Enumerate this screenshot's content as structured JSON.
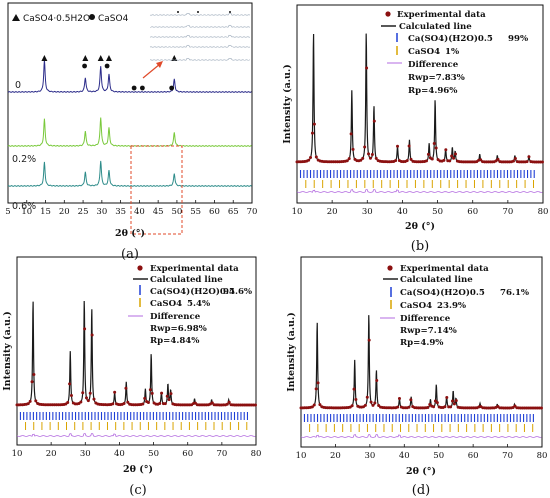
{
  "colors": {
    "frame": "#111111",
    "exp_marker": "#8b1010",
    "calc_line": "#1a1a1a",
    "tick_phase1": "#1f3fd6",
    "tick_phase2": "#d9a400",
    "difference": "#b36be0",
    "trace0": "#2c2c8a",
    "trace02": "#79c93b",
    "trace06": "#2e8c8a",
    "box": "#e04a2a"
  },
  "panel_a": {
    "legend_hemihydrate": "CaSO4·0.5H2O",
    "legend_caso4": "CaSO4",
    "xlabel": "2θ (°)",
    "panel_label": "(a)",
    "x_ticks": [
      "5",
      "10",
      "15",
      "20",
      "25",
      "30",
      "35",
      "40",
      "45",
      "50",
      "55",
      "60",
      "65",
      "70"
    ],
    "samples": [
      "0",
      "0.2%",
      "0.6%"
    ]
  },
  "panel_b": {
    "legend_exp": "Experimental data",
    "legend_calc": "Calculated line",
    "phase1_name": "Ca(SO4)(H2O)0.5",
    "phase1_pct": "99%",
    "phase2_name": "CaSO4",
    "phase2_pct": "1%",
    "legend_diff": "Difference",
    "rwp": "Rwp=7.83%",
    "rp": "Rp=4.96%",
    "xlabel": "2θ (°)",
    "ylabel": "Intensity (a.u.)",
    "panel_label": "(b)",
    "x_ticks": [
      "10",
      "20",
      "30",
      "40",
      "50",
      "60",
      "70",
      "80"
    ]
  },
  "panel_c": {
    "legend_exp": "Experimental data",
    "legend_calc": "Calculated line",
    "phase1_name": "Ca(SO4)(H2O)0.5",
    "phase1_pct": "94.6%",
    "phase2_name": "CaSO4",
    "phase2_pct": "5.4%",
    "legend_diff": "Difference",
    "rwp": "Rwp=6.98%",
    "rp": "Rp=4.84%",
    "xlabel": "2θ (°)",
    "ylabel": "Intensity (a.u.)",
    "panel_label": "(c)",
    "x_ticks": [
      "10",
      "20",
      "30",
      "40",
      "50",
      "60",
      "70",
      "80"
    ]
  },
  "panel_d": {
    "legend_exp": "Experimental data",
    "legend_calc": "Calculated line",
    "phase1_name": "Ca(SO4)(H2O)0.5",
    "phase1_pct": "76.1%",
    "phase2_name": "CaSO4",
    "phase2_pct": "23.9%",
    "legend_diff": "Difference",
    "rwp": "Rwp=7.14%",
    "rp": "Rp=4.9%",
    "xlabel": "2θ (°)",
    "ylabel": "Intensity (a.u.)",
    "panel_label": "(d)",
    "x_ticks": [
      "10",
      "20",
      "30",
      "40",
      "50",
      "60",
      "70",
      "80"
    ]
  },
  "chart_data": [
    {
      "type": "line",
      "panel": "a",
      "xlabel": "2θ (°)",
      "xlim": [
        5,
        70
      ],
      "series": [
        {
          "name": "0",
          "peaks": [
            [
              14.7,
              1.0
            ],
            [
              25.6,
              0.45
            ],
            [
              29.7,
              0.8
            ],
            [
              31.9,
              0.55
            ],
            [
              49.3,
              0.4
            ]
          ]
        },
        {
          "name": "0.2%",
          "peaks": [
            [
              14.7,
              0.9
            ],
            [
              25.6,
              0.5
            ],
            [
              29.7,
              0.95
            ],
            [
              31.9,
              0.6
            ],
            [
              49.3,
              0.45
            ]
          ]
        },
        {
          "name": "0.6%",
          "peaks": [
            [
              14.7,
              0.85
            ],
            [
              25.6,
              0.5
            ],
            [
              29.7,
              0.9
            ],
            [
              31.9,
              0.55
            ],
            [
              49.3,
              0.45
            ]
          ]
        }
      ],
      "marker_hemihydrate_2theta": [
        14.7,
        25.6,
        29.7,
        31.9,
        49.3
      ],
      "marker_caso4_2theta": [
        25.4,
        31.4,
        38.6,
        40.8,
        48.6
      ]
    },
    {
      "type": "line",
      "panel": "b",
      "xlabel": "2θ (°)",
      "ylabel": "Intensity (a.u.)",
      "xlim": [
        10,
        80
      ],
      "peaks": [
        [
          14.7,
          1.0
        ],
        [
          25.6,
          0.55
        ],
        [
          29.7,
          1.0
        ],
        [
          31.9,
          0.43
        ],
        [
          38.6,
          0.12
        ],
        [
          42.0,
          0.17
        ],
        [
          47.6,
          0.14
        ],
        [
          49.3,
          0.48
        ],
        [
          52.3,
          0.1
        ],
        [
          54.2,
          0.11
        ],
        [
          55.0,
          0.08
        ],
        [
          62.0,
          0.06
        ],
        [
          67.0,
          0.05
        ],
        [
          72.0,
          0.05
        ],
        [
          76.0,
          0.04
        ]
      ]
    },
    {
      "type": "line",
      "panel": "c",
      "xlabel": "2θ (°)",
      "ylabel": "Intensity (a.u.)",
      "xlim": [
        10,
        80
      ],
      "peaks": [
        [
          14.7,
          1.0
        ],
        [
          25.6,
          0.51
        ],
        [
          29.7,
          1.0
        ],
        [
          31.9,
          0.92
        ],
        [
          38.6,
          0.12
        ],
        [
          42.0,
          0.22
        ],
        [
          47.6,
          0.15
        ],
        [
          49.3,
          0.49
        ],
        [
          52.3,
          0.12
        ],
        [
          54.2,
          0.2
        ],
        [
          55.0,
          0.14
        ],
        [
          62.0,
          0.06
        ],
        [
          67.0,
          0.05
        ],
        [
          72.0,
          0.05
        ]
      ]
    },
    {
      "type": "line",
      "panel": "d",
      "xlabel": "2θ (°)",
      "ylabel": "Intensity (a.u.)",
      "xlim": [
        10,
        80
      ],
      "peaks": [
        [
          14.7,
          0.92
        ],
        [
          25.6,
          0.51
        ],
        [
          29.7,
          1.0
        ],
        [
          31.9,
          0.4
        ],
        [
          38.6,
          0.1
        ],
        [
          42.0,
          0.12
        ],
        [
          47.6,
          0.09
        ],
        [
          49.3,
          0.25
        ],
        [
          52.3,
          0.12
        ],
        [
          54.2,
          0.18
        ],
        [
          55.0,
          0.1
        ],
        [
          62.0,
          0.05
        ],
        [
          67.0,
          0.04
        ],
        [
          72.0,
          0.04
        ]
      ]
    }
  ]
}
